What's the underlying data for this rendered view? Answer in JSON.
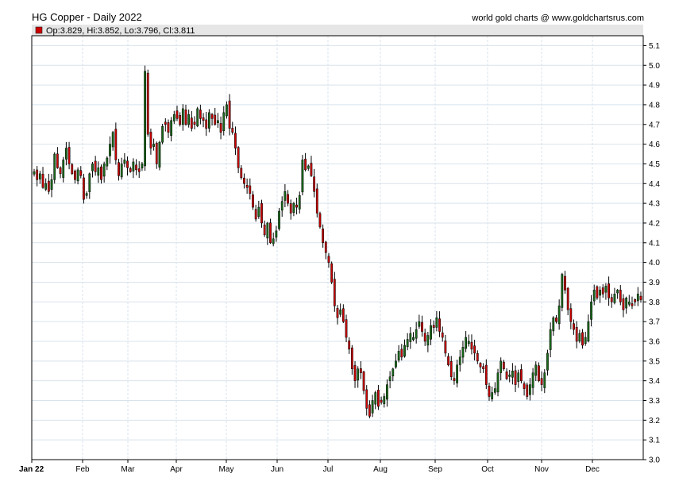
{
  "title": "HG Copper - Daily 2022",
  "attribution": "world gold charts @ www.goldchartsrus.com",
  "ohlc_text": "Op:3.829, Hi:3.852, Lo:3.796, Cl:3.811",
  "colors": {
    "up": "#1a6b1a",
    "down": "#cc0000",
    "wick": "#000000",
    "grid": "#d9e3ec",
    "infobar": "#e6e6e6",
    "marker": "#cc0000"
  },
  "chart_data": {
    "type": "candlestick",
    "title": "HG Copper - Daily 2022",
    "x_tick_labels": [
      "Jan 22",
      "Feb",
      "Mar",
      "Apr",
      "May",
      "Jun",
      "Jul",
      "Aug",
      "Sep",
      "Oct",
      "Nov",
      "Dec"
    ],
    "y_tick_labels": [
      "3.0",
      "3.1",
      "3.2",
      "3.3",
      "3.4",
      "3.5",
      "3.6",
      "3.7",
      "3.8",
      "3.9",
      "4.0",
      "4.1",
      "4.2",
      "4.3",
      "4.4",
      "4.5",
      "4.6",
      "4.7",
      "4.8",
      "4.9",
      "5.0",
      "5.1"
    ],
    "ylim": [
      3.0,
      5.15
    ],
    "grid": true,
    "last_bar": {
      "open": 3.829,
      "high": 3.852,
      "low": 3.796,
      "close": 3.811
    },
    "closes": [
      4.46,
      4.42,
      4.45,
      4.38,
      4.4,
      4.36,
      4.42,
      4.55,
      4.48,
      4.45,
      4.52,
      4.58,
      4.5,
      4.45,
      4.42,
      4.47,
      4.44,
      4.32,
      4.35,
      4.45,
      4.5,
      4.46,
      4.48,
      4.42,
      4.5,
      4.53,
      4.6,
      4.66,
      4.52,
      4.44,
      4.5,
      4.52,
      4.48,
      4.46,
      4.51,
      4.47,
      4.46,
      4.5,
      4.97,
      4.65,
      4.58,
      4.6,
      4.5,
      4.61,
      4.69,
      4.7,
      4.66,
      4.72,
      4.75,
      4.73,
      4.7,
      4.78,
      4.7,
      4.75,
      4.68,
      4.7,
      4.78,
      4.73,
      4.72,
      4.68,
      4.76,
      4.73,
      4.7,
      4.72,
      4.66,
      4.76,
      4.8,
      4.68,
      4.66,
      4.58,
      4.48,
      4.43,
      4.4,
      4.38,
      4.35,
      4.28,
      4.22,
      4.28,
      4.2,
      4.14,
      4.2,
      4.1,
      4.12,
      4.16,
      4.26,
      4.31,
      4.36,
      4.3,
      4.25,
      4.3,
      4.28,
      4.34,
      4.52,
      4.47,
      4.49,
      4.44,
      4.36,
      4.25,
      4.18,
      4.1,
      4.05,
      4.0,
      3.9,
      3.78,
      3.72,
      3.76,
      3.7,
      3.62,
      3.56,
      3.46,
      3.4,
      3.46,
      3.44,
      3.35,
      3.26,
      3.22,
      3.3,
      3.34,
      3.27,
      3.29,
      3.32,
      3.38,
      3.42,
      3.46,
      3.5,
      3.55,
      3.52,
      3.58,
      3.61,
      3.64,
      3.62,
      3.66,
      3.7,
      3.65,
      3.6,
      3.63,
      3.68,
      3.67,
      3.72,
      3.65,
      3.62,
      3.54,
      3.48,
      3.42,
      3.4,
      3.48,
      3.52,
      3.57,
      3.62,
      3.6,
      3.56,
      3.54,
      3.5,
      3.47,
      3.46,
      3.38,
      3.32,
      3.34,
      3.36,
      3.44,
      3.5,
      3.46,
      3.41,
      3.43,
      3.45,
      3.38,
      3.44,
      3.4,
      3.36,
      3.32,
      3.38,
      3.44,
      3.48,
      3.4,
      3.38,
      3.44,
      3.54,
      3.66,
      3.72,
      3.7,
      3.78,
      3.94,
      3.86,
      3.76,
      3.7,
      3.66,
      3.6,
      3.64,
      3.58,
      3.62,
      3.7,
      3.8,
      3.86,
      3.82,
      3.86,
      3.84,
      3.88,
      3.82,
      3.8,
      3.84,
      3.86,
      3.8,
      3.76,
      3.82,
      3.8,
      3.78,
      3.8,
      3.84,
      3.811
    ]
  }
}
